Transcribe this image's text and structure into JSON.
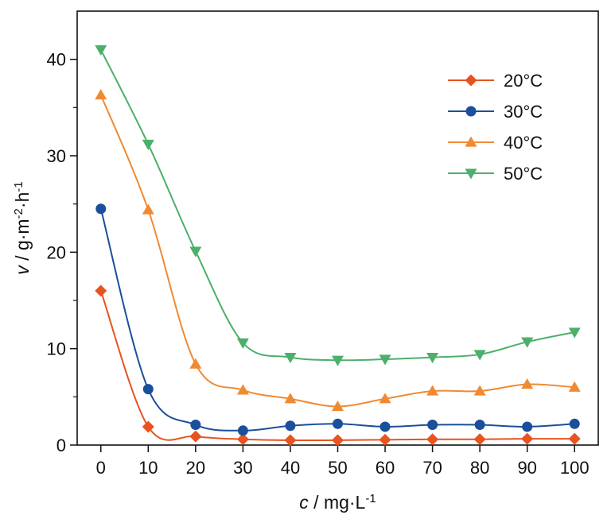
{
  "chart_data": {
    "type": "line",
    "x": [
      0,
      10,
      20,
      30,
      40,
      50,
      60,
      70,
      80,
      90,
      100
    ],
    "xlim": [
      -5,
      105
    ],
    "ylim": [
      0,
      45
    ],
    "xticks": [
      "0",
      "10",
      "20",
      "30",
      "40",
      "50",
      "60",
      "70",
      "80",
      "90",
      "100"
    ],
    "yticks": [
      "0",
      "10",
      "20",
      "30",
      "40"
    ],
    "xlabel": {
      "var": "c",
      "unit": " / mg·L",
      "sup": "-1"
    },
    "ylabel": {
      "var": "v",
      "unit": " / g·m",
      "sup1": "-2",
      "mid": "·h",
      "sup2": "-1"
    },
    "grid": false,
    "legend_position": "top-right",
    "series": [
      {
        "name": "20°C",
        "color": "#e8531f",
        "marker": "diamond",
        "values": [
          16.0,
          1.9,
          0.9,
          0.6,
          0.5,
          0.5,
          0.55,
          0.6,
          0.6,
          0.65,
          0.65
        ]
      },
      {
        "name": "30°C",
        "color": "#1b4f9c",
        "marker": "circle",
        "values": [
          24.5,
          5.8,
          2.1,
          1.5,
          2.0,
          2.2,
          1.9,
          2.1,
          2.1,
          1.9,
          2.2
        ]
      },
      {
        "name": "40°C",
        "color": "#f08a32",
        "marker": "triangle-up",
        "values": [
          36.3,
          24.4,
          8.4,
          5.7,
          4.8,
          4.0,
          4.8,
          5.6,
          5.6,
          6.3,
          6.0
        ]
      },
      {
        "name": "50°C",
        "color": "#4caf6b",
        "marker": "triangle-down",
        "values": [
          41.0,
          31.2,
          20.1,
          10.6,
          9.1,
          8.8,
          8.9,
          9.1,
          9.4,
          10.7,
          11.7
        ]
      }
    ]
  }
}
